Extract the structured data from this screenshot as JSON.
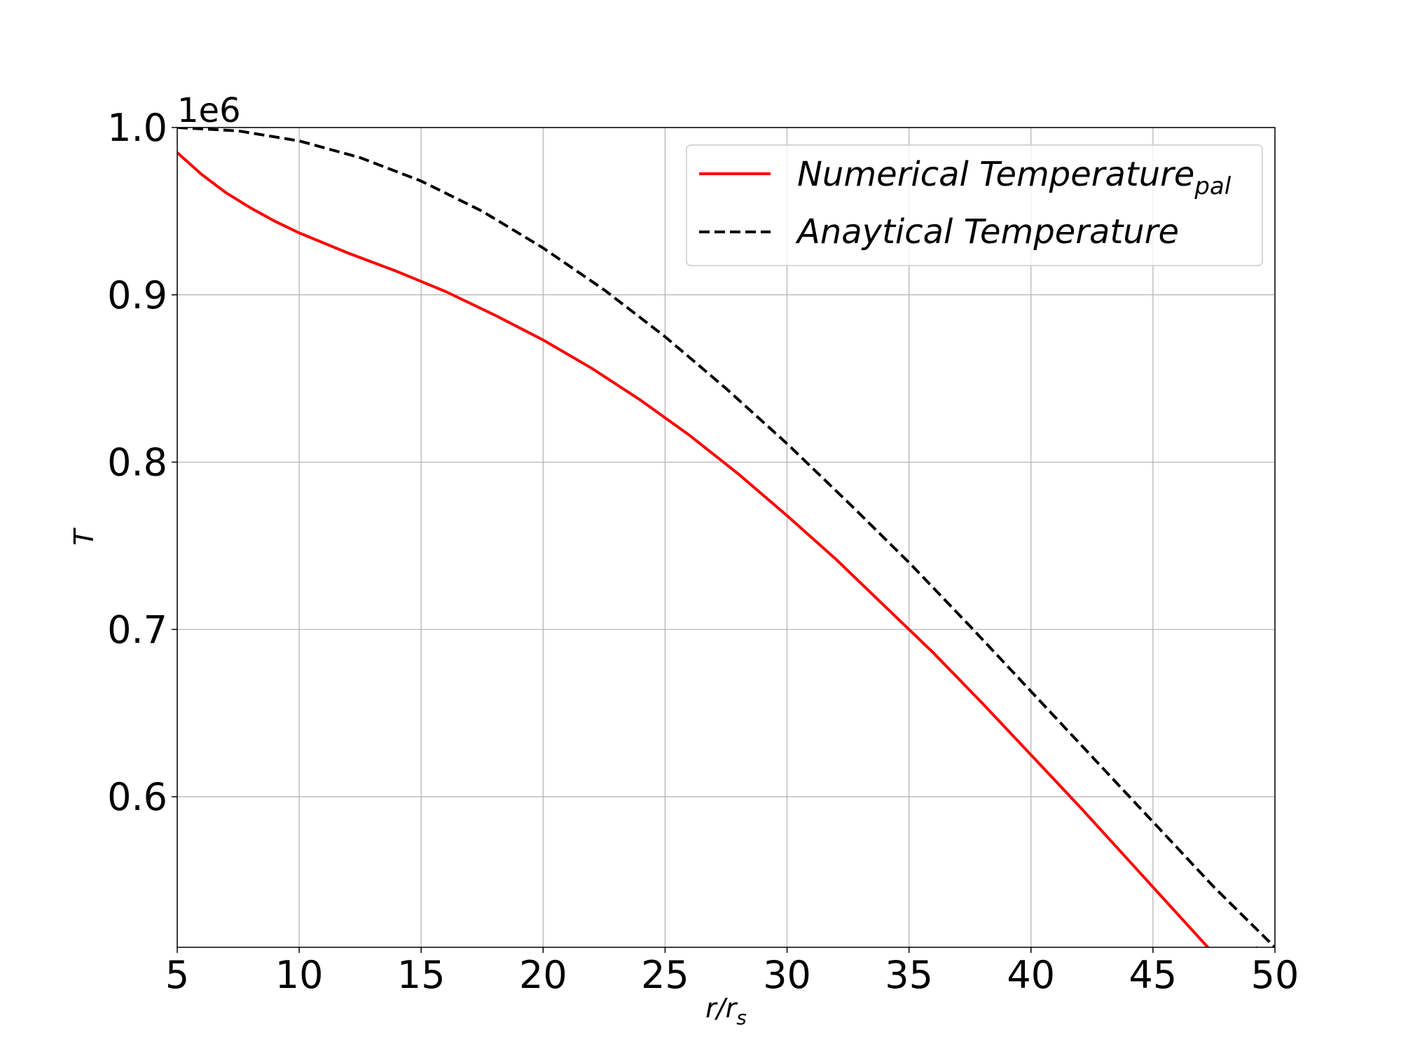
{
  "chart_data": {
    "type": "line",
    "xlabel": "r/r",
    "xlabel_sub": "s",
    "ylabel": "T",
    "y_offset_label": "1e6",
    "xlim": [
      5,
      50
    ],
    "ylim": [
      0.51,
      1.0
    ],
    "x_ticks": [
      5,
      10,
      15,
      20,
      25,
      30,
      35,
      40,
      45,
      50
    ],
    "x_tick_labels": [
      "5",
      "10",
      "15",
      "20",
      "25",
      "30",
      "35",
      "40",
      "45",
      "50"
    ],
    "y_ticks": [
      0.6,
      0.7,
      0.8,
      0.9,
      1.0
    ],
    "y_tick_labels": [
      "0.6",
      "0.7",
      "0.8",
      "0.9",
      "1.0"
    ],
    "grid": true,
    "legend_position": "top-right",
    "series": [
      {
        "name": "Numerical Temperature",
        "name_sub": "pal",
        "color": "#ff0000",
        "style": "solid",
        "x": [
          5,
          6,
          7,
          8,
          9,
          10,
          12,
          14,
          16,
          18,
          20,
          22,
          24,
          26,
          28,
          30,
          32,
          34,
          36,
          38,
          40,
          42,
          44,
          46,
          48,
          49.3
        ],
        "y": [
          0.985,
          0.972,
          0.961,
          0.952,
          0.944,
          0.937,
          0.925,
          0.914,
          0.902,
          0.888,
          0.873,
          0.856,
          0.837,
          0.816,
          0.793,
          0.768,
          0.742,
          0.714,
          0.686,
          0.656,
          0.625,
          0.594,
          0.562,
          0.53,
          0.498,
          0.51
        ]
      },
      {
        "name": "Anaytical Temperature",
        "color": "#000000",
        "style": "dashed",
        "x": [
          5,
          7.5,
          10,
          12.5,
          15,
          17.5,
          20,
          22.5,
          25,
          27.5,
          30,
          32.5,
          35,
          37.5,
          40,
          42.5,
          45,
          47.5,
          50
        ],
        "y": [
          1.0,
          0.998,
          0.992,
          0.982,
          0.968,
          0.95,
          0.928,
          0.903,
          0.875,
          0.844,
          0.811,
          0.776,
          0.74,
          0.702,
          0.663,
          0.624,
          0.585,
          0.546,
          0.51
        ]
      }
    ]
  }
}
